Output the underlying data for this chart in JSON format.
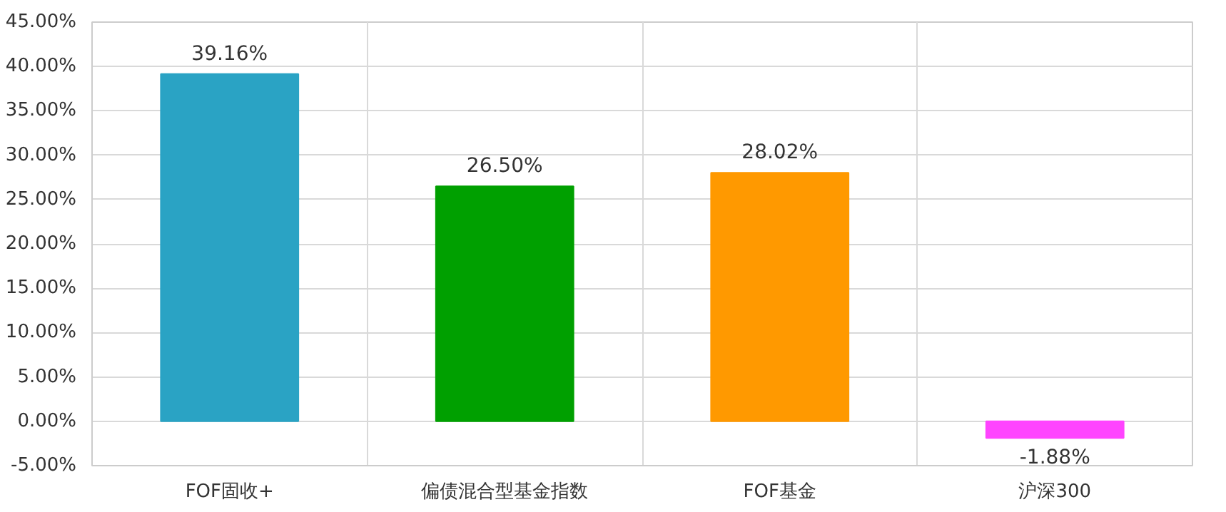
{
  "chart_data": {
    "type": "bar",
    "categories": [
      "FOF固收+",
      "偏债混合型基金指数",
      "FOF基金",
      "沪深300"
    ],
    "values": [
      39.16,
      26.5,
      28.02,
      -1.88
    ],
    "colors": [
      "#2aa3c4",
      "#00a000",
      "#ff9900",
      "#ff44ff"
    ],
    "value_labels": [
      "39.16%",
      "26.50%",
      "28.02%",
      "-1.88%"
    ],
    "ylim": [
      -5,
      45
    ],
    "yticks": [
      {
        "value": -5,
        "label": "-5.00%"
      },
      {
        "value": 0,
        "label": "0.00%"
      },
      {
        "value": 5,
        "label": "5.00%"
      },
      {
        "value": 10,
        "label": "10.00%"
      },
      {
        "value": 15,
        "label": "15.00%"
      },
      {
        "value": 20,
        "label": "20.00%"
      },
      {
        "value": 25,
        "label": "25.00%"
      },
      {
        "value": 30,
        "label": "30.00%"
      },
      {
        "value": 35,
        "label": "35.00%"
      },
      {
        "value": 40,
        "label": "40.00%"
      },
      {
        "value": 45,
        "label": "45.00%"
      }
    ],
    "grid": true
  }
}
